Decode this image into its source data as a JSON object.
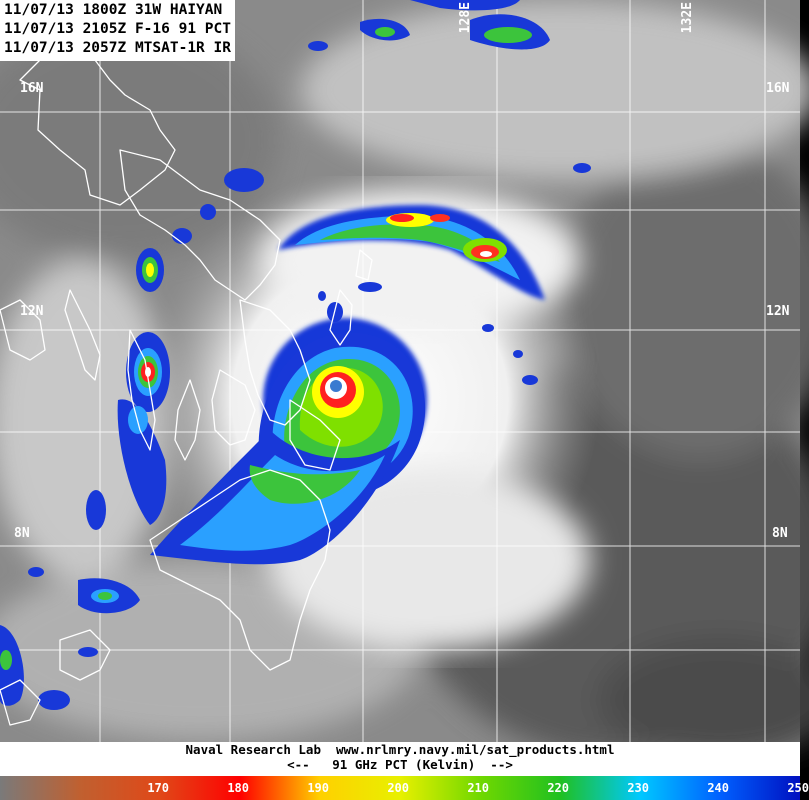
{
  "header": {
    "line1": "11/07/13 1800Z 31W HAIYAN",
    "line2": "11/07/13 2105Z F-16 91 PCT",
    "line3": "11/07/13 2057Z MTSAT-1R IR"
  },
  "grid": {
    "lat_labels": [
      "16N",
      "12N",
      "8N"
    ],
    "lon_labels": [
      "128E",
      "132E"
    ]
  },
  "footer": {
    "credit": "Naval Research Lab  www.nrlmry.navy.mil/sat_products.html",
    "units": "<--   91 GHz PCT (Kelvin)  -->"
  },
  "colorbar": {
    "ticks": [
      "170",
      "180",
      "190",
      "200",
      "210",
      "220",
      "230",
      "240",
      "250"
    ],
    "colors": [
      "#8c5a3c",
      "#c85a1e",
      "#e6321e",
      "#ff0000",
      "#ffcc00",
      "#ffff00",
      "#7fe000",
      "#30c030",
      "#00d0ff",
      "#0070ff",
      "#0000c0"
    ]
  }
}
